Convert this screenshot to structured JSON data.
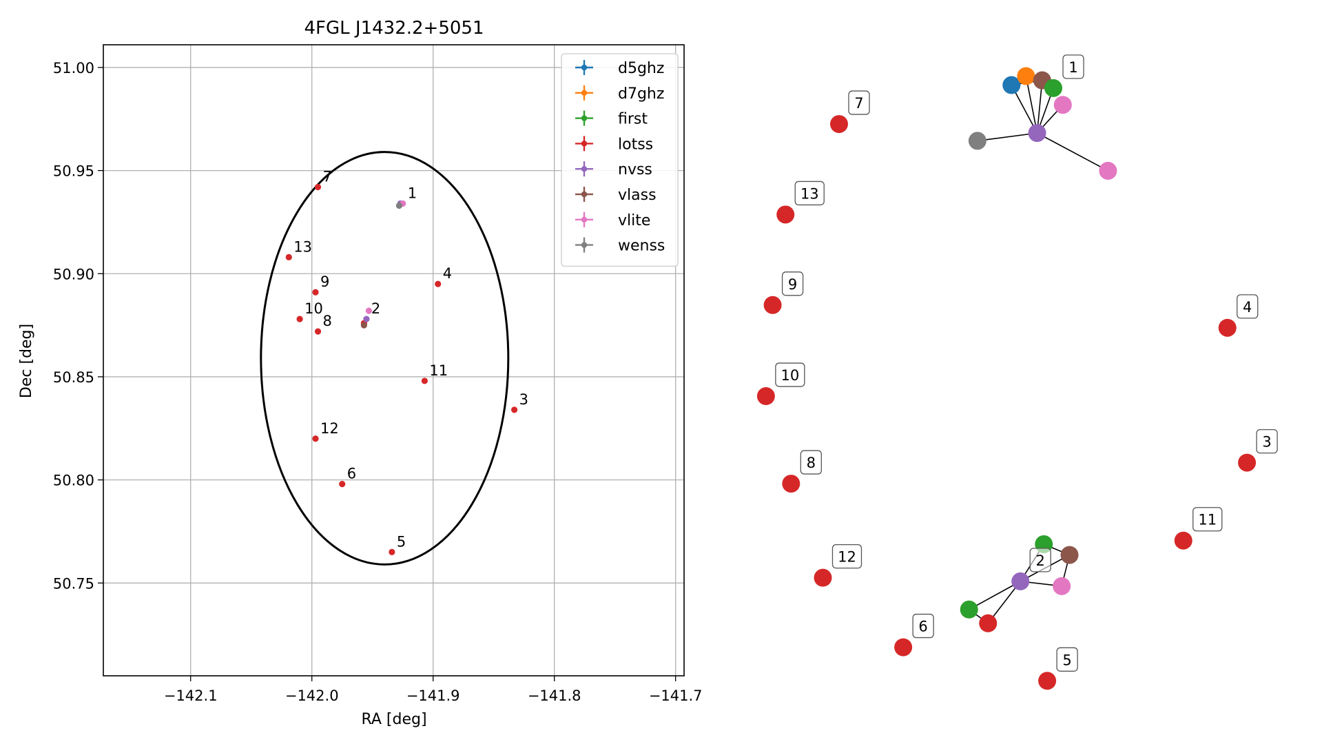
{
  "chart_data": [
    {
      "type": "scatter",
      "title": "4FGL J1432.2+5051",
      "xlabel": "RA [deg]",
      "ylabel": "Dec [deg]",
      "xlim": [
        -142.172,
        -141.693
      ],
      "ylim": [
        50.705,
        51.011
      ],
      "x_ticks": [
        -142.1,
        -142.0,
        -141.9,
        -141.8,
        -141.7
      ],
      "x_tick_labels": [
        "−142.1",
        "−142.0",
        "−141.9",
        "−141.8",
        "−141.7"
      ],
      "y_ticks": [
        50.75,
        50.8,
        50.85,
        50.9,
        50.95,
        51.0
      ],
      "y_tick_labels": [
        "50.75",
        "50.80",
        "50.85",
        "50.90",
        "50.95",
        "51.00"
      ],
      "grid": true,
      "legend_position": "top-right",
      "ellipse": {
        "center": [
          -141.94,
          50.859
        ],
        "semi_axis_ra": 0.102,
        "semi_axis_dec": 0.1
      },
      "series": [
        {
          "name": "d5ghz",
          "color": "#1f77b4",
          "points": []
        },
        {
          "name": "d7ghz",
          "color": "#ff7f0e",
          "points": []
        },
        {
          "name": "first",
          "color": "#2ca02c",
          "points": []
        },
        {
          "name": "lotss",
          "color": "#d62728",
          "points": [
            {
              "x": -141.995,
              "y": 50.942,
              "label": "7"
            },
            {
              "x": -142.019,
              "y": 50.908,
              "label": "13"
            },
            {
              "x": -141.997,
              "y": 50.891,
              "label": "9"
            },
            {
              "x": -142.01,
              "y": 50.878,
              "label": "10"
            },
            {
              "x": -141.995,
              "y": 50.872,
              "label": "8"
            },
            {
              "x": -141.896,
              "y": 50.895,
              "label": "4"
            },
            {
              "x": -141.907,
              "y": 50.848,
              "label": "11"
            },
            {
              "x": -141.833,
              "y": 50.834,
              "label": "3"
            },
            {
              "x": -141.997,
              "y": 50.82,
              "label": "12"
            },
            {
              "x": -141.975,
              "y": 50.798,
              "label": "6"
            },
            {
              "x": -141.934,
              "y": 50.765,
              "label": "5"
            },
            {
              "x": -141.957,
              "y": 50.876,
              "label": ""
            }
          ]
        },
        {
          "name": "nvss",
          "color": "#9467bd",
          "points": [
            {
              "x": -141.955,
              "y": 50.878,
              "label": "2"
            },
            {
              "x": -141.927,
              "y": 50.934,
              "label": ""
            }
          ]
        },
        {
          "name": "vlass",
          "color": "#8c564b",
          "points": [
            {
              "x": -141.957,
              "y": 50.875,
              "label": ""
            }
          ]
        },
        {
          "name": "vlite",
          "color": "#e377c2",
          "points": [
            {
              "x": -141.953,
              "y": 50.882,
              "label": ""
            },
            {
              "x": -141.925,
              "y": 50.934,
              "label": "1"
            }
          ]
        },
        {
          "name": "wenss",
          "color": "#7f7f7f",
          "points": [
            {
              "x": -141.928,
              "y": 50.933,
              "label": ""
            }
          ]
        }
      ]
    },
    {
      "type": "network",
      "nodes": [
        {
          "id": "c1-d5ghz",
          "color": "#1f77b4",
          "x": 0.446,
          "y": 0.096
        },
        {
          "id": "c1-d7ghz",
          "color": "#ff7f0e",
          "x": 0.472,
          "y": 0.081
        },
        {
          "id": "c1-vlass",
          "color": "#8c564b",
          "x": 0.501,
          "y": 0.088
        },
        {
          "id": "c1-first",
          "color": "#2ca02c",
          "x": 0.521,
          "y": 0.101
        },
        {
          "id": "c1-vlite-a",
          "color": "#e377c2",
          "x": 0.538,
          "y": 0.129
        },
        {
          "id": "c1-nvss",
          "color": "#9467bd",
          "x": 0.492,
          "y": 0.176
        },
        {
          "id": "c1-wenss",
          "color": "#7f7f7f",
          "x": 0.385,
          "y": 0.189
        },
        {
          "id": "c1-vlite-b",
          "color": "#e377c2",
          "x": 0.619,
          "y": 0.239
        },
        {
          "id": "n7",
          "color": "#d62728",
          "x": 0.137,
          "y": 0.161
        },
        {
          "id": "n13",
          "color": "#d62728",
          "x": 0.041,
          "y": 0.312
        },
        {
          "id": "n9",
          "color": "#d62728",
          "x": 0.018,
          "y": 0.463
        },
        {
          "id": "n4",
          "color": "#d62728",
          "x": 0.833,
          "y": 0.501
        },
        {
          "id": "n10",
          "color": "#d62728",
          "x": 0.006,
          "y": 0.615
        },
        {
          "id": "n3",
          "color": "#d62728",
          "x": 0.868,
          "y": 0.726
        },
        {
          "id": "n8",
          "color": "#d62728",
          "x": 0.051,
          "y": 0.761
        },
        {
          "id": "n11",
          "color": "#d62728",
          "x": 0.754,
          "y": 0.856
        },
        {
          "id": "c2-first-a",
          "color": "#2ca02c",
          "x": 0.504,
          "y": 0.862
        },
        {
          "id": "c2-vlass",
          "color": "#8c564b",
          "x": 0.55,
          "y": 0.88
        },
        {
          "id": "c2-nvss",
          "color": "#9467bd",
          "x": 0.462,
          "y": 0.924
        },
        {
          "id": "c2-vlite",
          "color": "#e377c2",
          "x": 0.536,
          "y": 0.932
        },
        {
          "id": "n12",
          "color": "#d62728",
          "x": 0.108,
          "y": 0.918
        },
        {
          "id": "c2-first-b",
          "color": "#2ca02c",
          "x": 0.37,
          "y": 0.971
        },
        {
          "id": "c2-lotss",
          "color": "#d62728",
          "x": 0.404,
          "y": 0.994
        },
        {
          "id": "n6",
          "color": "#d62728",
          "x": 0.252,
          "y": 1.034
        },
        {
          "id": "n5",
          "color": "#d62728",
          "x": 0.51,
          "y": 1.09
        }
      ],
      "edges": [
        [
          "c1-nvss",
          "c1-d5ghz"
        ],
        [
          "c1-nvss",
          "c1-d7ghz"
        ],
        [
          "c1-nvss",
          "c1-vlass"
        ],
        [
          "c1-nvss",
          "c1-first"
        ],
        [
          "c1-nvss",
          "c1-vlite-a"
        ],
        [
          "c1-nvss",
          "c1-wenss"
        ],
        [
          "c1-nvss",
          "c1-vlite-b"
        ],
        [
          "c1-d5ghz",
          "c1-vlass"
        ],
        [
          "c1-d7ghz",
          "c1-first"
        ],
        [
          "c2-nvss",
          "c2-first-a"
        ],
        [
          "c2-nvss",
          "c2-vlass"
        ],
        [
          "c2-nvss",
          "c2-vlite"
        ],
        [
          "c2-nvss",
          "c2-first-b"
        ],
        [
          "c2-nvss",
          "c2-lotss"
        ],
        [
          "c2-first-a",
          "c2-vlass"
        ],
        [
          "c2-vlass",
          "c2-vlite"
        ],
        [
          "c2-first-b",
          "c2-lotss"
        ]
      ],
      "labels": [
        {
          "text": "1",
          "node": "c1-first"
        },
        {
          "text": "7",
          "node": "n7"
        },
        {
          "text": "13",
          "node": "n13"
        },
        {
          "text": "9",
          "node": "n9"
        },
        {
          "text": "4",
          "node": "n4"
        },
        {
          "text": "10",
          "node": "n10"
        },
        {
          "text": "3",
          "node": "n3"
        },
        {
          "text": "8",
          "node": "n8"
        },
        {
          "text": "11",
          "node": "n11"
        },
        {
          "text": "2",
          "node": "c2-nvss"
        },
        {
          "text": "12",
          "node": "n12"
        },
        {
          "text": "6",
          "node": "n6"
        },
        {
          "text": "5",
          "node": "n5"
        }
      ]
    }
  ]
}
